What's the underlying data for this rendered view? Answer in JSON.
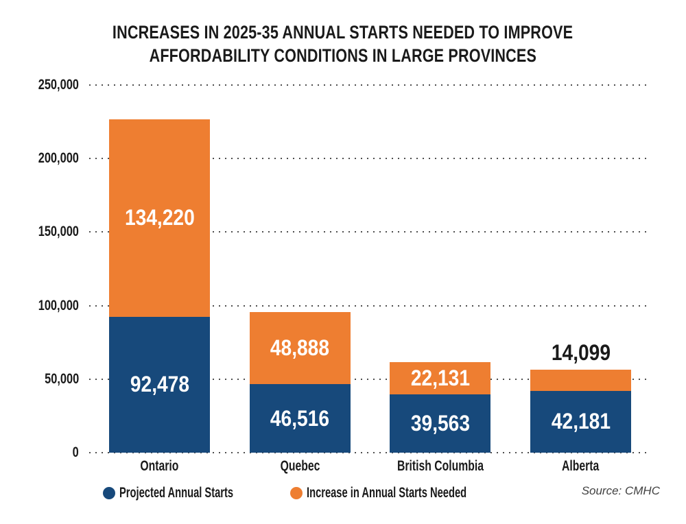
{
  "title": {
    "line1": "INCREASES IN 2025-35 ANNUAL STARTS NEEDED TO IMPROVE",
    "line2": "AFFORDABILITY CONDITIONS IN LARGE PROVINCES"
  },
  "chart_data": {
    "type": "bar",
    "stacked": true,
    "title": "INCREASES IN 2025-35 ANNUAL STARTS NEEDED TO IMPROVE AFFORDABILITY CONDITIONS IN LARGE PROVINCES",
    "categories": [
      "Ontario",
      "Quebec",
      "British Columbia",
      "Alberta"
    ],
    "series": [
      {
        "name": "Projected Annual Starts",
        "color": "#17497B",
        "values": [
          92478,
          46516,
          39563,
          42181
        ],
        "value_labels": [
          "92,478",
          "46,516",
          "39,563",
          "42,181"
        ],
        "label_color": "#ffffff",
        "label_placement": [
          "inside",
          "inside",
          "inside",
          "inside"
        ]
      },
      {
        "name": "Increase in Annual Starts Needed",
        "color": "#EE7E31",
        "values": [
          134220,
          48888,
          22131,
          14099
        ],
        "value_labels": [
          "134,220",
          "48,888",
          "22,131",
          "14,099"
        ],
        "label_color": "#ffffff",
        "outside_label_color": "#1a1a1a",
        "label_placement": [
          "inside",
          "inside",
          "inside",
          "above"
        ]
      }
    ],
    "totals": [
      226698,
      95404,
      61694,
      56280
    ],
    "ylim": [
      0,
      250000
    ],
    "y_ticks": [
      {
        "value": 250000,
        "label": "250,000"
      },
      {
        "value": 200000,
        "label": "200,000"
      },
      {
        "value": 150000,
        "label": "150,000"
      },
      {
        "value": 100000,
        "label": "100,000"
      },
      {
        "value": 50000,
        "label": "50,000"
      },
      {
        "value": 0,
        "label": "0"
      }
    ],
    "grid": "horizontal-dotted",
    "gridline_color": "#4d4d4d",
    "legend_position": "bottom-left"
  },
  "legend": {
    "items": [
      {
        "label": "Projected Annual Starts",
        "color": "#17497B"
      },
      {
        "label": "Increase in Annual Starts Needed",
        "color": "#EE7E31"
      }
    ]
  },
  "source": "Source: CMHC",
  "colors": {
    "background": "#ffffff",
    "projected_blue": "#17497B",
    "increase_orange": "#EE7E31",
    "text_black": "#1a1a1a",
    "gridline_gray": "#4d4d4d",
    "source_gray": "#414141"
  }
}
